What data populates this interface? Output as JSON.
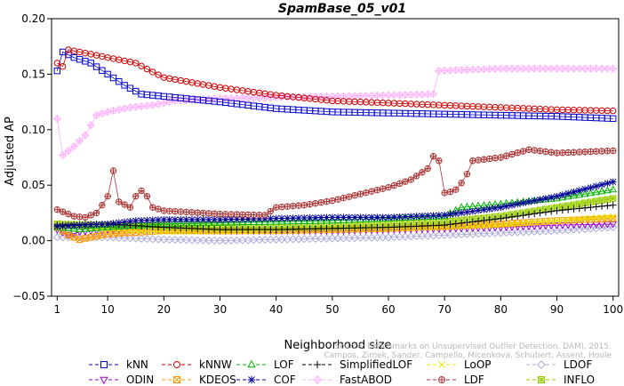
{
  "chart_data": {
    "type": "line",
    "title": "SpamBase_05_v01",
    "xlabel": "Neighborhood size",
    "ylabel": "Adjusted AP",
    "xlim": [
      0,
      101
    ],
    "ylim": [
      -0.05,
      0.2
    ],
    "x_ticks": [
      1,
      10,
      20,
      30,
      40,
      50,
      60,
      70,
      80,
      90,
      100
    ],
    "y_ticks": [
      -0.05,
      0.0,
      0.05,
      0.1,
      0.15,
      0.2
    ],
    "y_tick_labels": [
      "−0.05",
      "0.00",
      "0.05",
      "0.10",
      "0.15",
      "0.20"
    ],
    "legend_position": "bottom",
    "credit": [
      "Source: Benchmarks on Unsupervised Outlier Detection. DAMI, 2015.",
      "Campos, Zimek, Sander, Campello, Micenkova, Schubert, Assent, Houle"
    ],
    "series": [
      {
        "name": "kNN",
        "color": "#0000cc",
        "marker": "square",
        "keypoints": [
          [
            1,
            0.153
          ],
          [
            2,
            0.17
          ],
          [
            4,
            0.165
          ],
          [
            7,
            0.16
          ],
          [
            10,
            0.15
          ],
          [
            13,
            0.14
          ],
          [
            16,
            0.132
          ],
          [
            20,
            0.13
          ],
          [
            30,
            0.125
          ],
          [
            40,
            0.119
          ],
          [
            50,
            0.116
          ],
          [
            60,
            0.115
          ],
          [
            70,
            0.114
          ],
          [
            80,
            0.113
          ],
          [
            90,
            0.112
          ],
          [
            100,
            0.11
          ]
        ]
      },
      {
        "name": "kNNW",
        "color": "#cc0000",
        "marker": "circle",
        "keypoints": [
          [
            1,
            0.16
          ],
          [
            2,
            0.157
          ],
          [
            3,
            0.172
          ],
          [
            5,
            0.17
          ],
          [
            10,
            0.165
          ],
          [
            15,
            0.16
          ],
          [
            18,
            0.152
          ],
          [
            20,
            0.147
          ],
          [
            30,
            0.138
          ],
          [
            40,
            0.131
          ],
          [
            50,
            0.126
          ],
          [
            60,
            0.124
          ],
          [
            70,
            0.122
          ],
          [
            80,
            0.12
          ],
          [
            90,
            0.118
          ],
          [
            100,
            0.117
          ]
        ]
      },
      {
        "name": "LOF",
        "color": "#00b400",
        "marker": "triangle-up",
        "keypoints": [
          [
            1,
            0.012
          ],
          [
            5,
            0.01
          ],
          [
            10,
            0.012
          ],
          [
            20,
            0.015
          ],
          [
            30,
            0.016
          ],
          [
            40,
            0.017
          ],
          [
            50,
            0.018
          ],
          [
            60,
            0.02
          ],
          [
            70,
            0.022
          ],
          [
            73,
            0.03
          ],
          [
            80,
            0.033
          ],
          [
            90,
            0.038
          ],
          [
            100,
            0.046
          ]
        ]
      },
      {
        "name": "SimplifiedLOF",
        "color": "#000000",
        "marker": "plus",
        "keypoints": [
          [
            1,
            0.014
          ],
          [
            10,
            0.015
          ],
          [
            20,
            0.012
          ],
          [
            30,
            0.01
          ],
          [
            40,
            0.01
          ],
          [
            50,
            0.011
          ],
          [
            60,
            0.012
          ],
          [
            70,
            0.014
          ],
          [
            80,
            0.02
          ],
          [
            87,
            0.025
          ],
          [
            90,
            0.027
          ],
          [
            100,
            0.032
          ]
        ]
      },
      {
        "name": "LoOP",
        "color": "#e6e600",
        "marker": "x",
        "keypoints": [
          [
            1,
            0.016
          ],
          [
            5,
            0.012
          ],
          [
            10,
            0.01
          ],
          [
            20,
            0.008
          ],
          [
            30,
            0.008
          ],
          [
            40,
            0.009
          ],
          [
            50,
            0.01
          ],
          [
            60,
            0.011
          ],
          [
            70,
            0.012
          ],
          [
            80,
            0.014
          ],
          [
            90,
            0.018
          ],
          [
            100,
            0.022
          ]
        ]
      },
      {
        "name": "LDOF",
        "color": "#aaaadd",
        "marker": "diamond",
        "keypoints": [
          [
            1,
            0.003
          ],
          [
            10,
            0.003
          ],
          [
            20,
            0.001
          ],
          [
            30,
            0.0
          ],
          [
            40,
            0.001
          ],
          [
            50,
            0.002
          ],
          [
            60,
            0.003
          ],
          [
            70,
            0.005
          ],
          [
            80,
            0.007
          ],
          [
            90,
            0.009
          ],
          [
            100,
            0.012
          ]
        ]
      },
      {
        "name": "ODIN",
        "color": "#9900cc",
        "marker": "triangle-down",
        "keypoints": [
          [
            1,
            0.01
          ],
          [
            3,
            0.005
          ],
          [
            5,
            0.008
          ],
          [
            10,
            0.01
          ],
          [
            20,
            0.01
          ],
          [
            30,
            0.009
          ],
          [
            40,
            0.009
          ],
          [
            50,
            0.009
          ],
          [
            60,
            0.01
          ],
          [
            70,
            0.011
          ],
          [
            80,
            0.012
          ],
          [
            90,
            0.014
          ],
          [
            100,
            0.015
          ]
        ]
      },
      {
        "name": "KDEOS",
        "color": "#ff9900",
        "marker": "square-x",
        "keypoints": [
          [
            1,
            0.012
          ],
          [
            3,
            0.005
          ],
          [
            5,
            0.001
          ],
          [
            7,
            0.003
          ],
          [
            10,
            0.006
          ],
          [
            20,
            0.009
          ],
          [
            30,
            0.009
          ],
          [
            40,
            0.009
          ],
          [
            50,
            0.01
          ],
          [
            60,
            0.011
          ],
          [
            70,
            0.013
          ],
          [
            80,
            0.015
          ],
          [
            90,
            0.018
          ],
          [
            100,
            0.02
          ]
        ]
      },
      {
        "name": "COF",
        "color": "#000099",
        "marker": "star",
        "keypoints": [
          [
            1,
            0.013
          ],
          [
            10,
            0.015
          ],
          [
            15,
            0.018
          ],
          [
            20,
            0.019
          ],
          [
            30,
            0.019
          ],
          [
            40,
            0.02
          ],
          [
            50,
            0.021
          ],
          [
            60,
            0.021
          ],
          [
            70,
            0.023
          ],
          [
            80,
            0.03
          ],
          [
            90,
            0.04
          ],
          [
            100,
            0.053
          ]
        ]
      },
      {
        "name": "FastABOD",
        "color": "#ffb0ff",
        "marker": "diamond-plus",
        "keypoints": [
          [
            1,
            0.11
          ],
          [
            2,
            0.077
          ],
          [
            4,
            0.085
          ],
          [
            6,
            0.095
          ],
          [
            8,
            0.113
          ],
          [
            10,
            0.116
          ],
          [
            14,
            0.12
          ],
          [
            18,
            0.122
          ],
          [
            22,
            0.126
          ],
          [
            30,
            0.128
          ],
          [
            40,
            0.129
          ],
          [
            50,
            0.13
          ],
          [
            60,
            0.131
          ],
          [
            68,
            0.132
          ],
          [
            69,
            0.153
          ],
          [
            80,
            0.155
          ],
          [
            100,
            0.155
          ]
        ]
      },
      {
        "name": "LDF",
        "color": "#aa3333",
        "marker": "circle-plus",
        "keypoints": [
          [
            1,
            0.028
          ],
          [
            2,
            0.026
          ],
          [
            4,
            0.022
          ],
          [
            6,
            0.021
          ],
          [
            8,
            0.025
          ],
          [
            9,
            0.032
          ],
          [
            10,
            0.04
          ],
          [
            11,
            0.063
          ],
          [
            12,
            0.035
          ],
          [
            14,
            0.03
          ],
          [
            15,
            0.04
          ],
          [
            16,
            0.045
          ],
          [
            17,
            0.04
          ],
          [
            18,
            0.03
          ],
          [
            20,
            0.027
          ],
          [
            30,
            0.024
          ],
          [
            38,
            0.023
          ],
          [
            40,
            0.03
          ],
          [
            45,
            0.032
          ],
          [
            50,
            0.036
          ],
          [
            55,
            0.042
          ],
          [
            60,
            0.048
          ],
          [
            64,
            0.055
          ],
          [
            67,
            0.065
          ],
          [
            68,
            0.076
          ],
          [
            69,
            0.072
          ],
          [
            70,
            0.043
          ],
          [
            71,
            0.044
          ],
          [
            72,
            0.046
          ],
          [
            73,
            0.052
          ],
          [
            74,
            0.06
          ],
          [
            75,
            0.072
          ],
          [
            80,
            0.075
          ],
          [
            85,
            0.082
          ],
          [
            90,
            0.079
          ],
          [
            100,
            0.081
          ]
        ]
      },
      {
        "name": "INFLO",
        "color": "#99cc00",
        "marker": "square-star",
        "keypoints": [
          [
            1,
            0.015
          ],
          [
            10,
            0.014
          ],
          [
            20,
            0.013
          ],
          [
            30,
            0.012
          ],
          [
            40,
            0.012
          ],
          [
            50,
            0.013
          ],
          [
            60,
            0.015
          ],
          [
            70,
            0.017
          ],
          [
            80,
            0.022
          ],
          [
            90,
            0.03
          ],
          [
            100,
            0.038
          ]
        ]
      }
    ]
  }
}
